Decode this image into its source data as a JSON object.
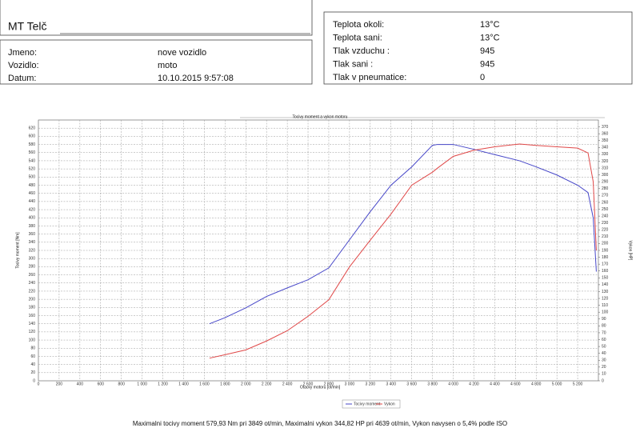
{
  "header": {
    "title": "MT Telč",
    "fields": [
      {
        "label": "Jmeno:",
        "value": "nove vozidlo"
      },
      {
        "label": "Vozidlo:",
        "value": "moto"
      },
      {
        "label": "Datum:",
        "value": "10.10.2015 9:57:08"
      }
    ]
  },
  "conditions": [
    {
      "label": "Teplota okoli:",
      "value": "13°C"
    },
    {
      "label": "Teplota sani:",
      "value": "13°C"
    },
    {
      "label": "Tlak vzduchu :",
      "value": "945"
    },
    {
      "label": "Tlak sani :",
      "value": "945"
    },
    {
      "label": "Tlak v pneumatice:",
      "value": "0"
    }
  ],
  "footer": "Maximalni tocivy moment 579,93 Nm pri 3849 ot/min,  Maximalni vykon 344,82 HP pri 4639 ot/min,  Vykon navysen o 5,4% podle ISO",
  "chart_data": {
    "type": "line",
    "title": "Tocivy moment a vykon motoru",
    "xlabel": "Otacky motoru [ot/min]",
    "ylabel": "Tocivy moment [Nm]",
    "y2label": "Vykon [HP]",
    "x": [
      1650,
      1800,
      2000,
      2200,
      2400,
      2600,
      2800,
      3000,
      3200,
      3400,
      3600,
      3800,
      3849,
      4000,
      4200,
      4400,
      4639,
      4800,
      5000,
      5200,
      5300,
      5350,
      5380
    ],
    "series": [
      {
        "name": "Tocivy moment",
        "color": "#4646c8",
        "values": [
          140,
          155,
          179,
          207,
          228,
          248,
          277,
          346,
          415,
          480,
          525,
          578,
          580,
          580,
          568,
          555,
          540,
          525,
          505,
          480,
          462,
          400,
          268
        ]
      },
      {
        "name": "Vykon",
        "color": "#e04848",
        "axis": "y2",
        "values": [
          33,
          38,
          45,
          58,
          73,
          94,
          118,
          166,
          205,
          243,
          285,
          304,
          310,
          327,
          336,
          341,
          345,
          343,
          341,
          339,
          332,
          290,
          190
        ]
      }
    ],
    "xlim": [
      0,
      5400
    ],
    "xticks": [
      0,
      200,
      400,
      600,
      800,
      {
        "value": 1000,
        "label": "1 000"
      },
      {
        "value": 1200,
        "label": "1 200"
      },
      {
        "value": 1400,
        "label": "1 400"
      },
      {
        "value": 1600,
        "label": "1 600"
      },
      {
        "value": 1800,
        "label": "1 800"
      },
      {
        "value": 2000,
        "label": "2 000"
      },
      {
        "value": 2200,
        "label": "2 200"
      },
      {
        "value": 2400,
        "label": "2 400"
      },
      {
        "value": 2600,
        "label": "2 600"
      },
      {
        "value": 2800,
        "label": "2 800"
      },
      {
        "value": 3000,
        "label": "3 000"
      },
      {
        "value": 3200,
        "label": "3 200"
      },
      {
        "value": 3400,
        "label": "3 400"
      },
      {
        "value": 3600,
        "label": "3 600"
      },
      {
        "value": 3800,
        "label": "3 800"
      },
      {
        "value": 4000,
        "label": "4 000"
      },
      {
        "value": 4200,
        "label": "4 200"
      },
      {
        "value": 4400,
        "label": "4 400"
      },
      {
        "value": 4600,
        "label": "4 600"
      },
      {
        "value": 4800,
        "label": "4 800"
      },
      {
        "value": 5000,
        "label": "5 000"
      },
      {
        "value": 5200,
        "label": "5 200"
      }
    ],
    "ylim": [
      0,
      640
    ],
    "yticks": [
      0,
      20,
      40,
      60,
      80,
      100,
      120,
      140,
      160,
      180,
      200,
      220,
      240,
      260,
      280,
      300,
      320,
      340,
      360,
      380,
      400,
      420,
      440,
      460,
      480,
      500,
      520,
      540,
      560,
      580,
      600,
      620
    ],
    "y2lim": [
      0,
      380
    ],
    "y2ticks": [
      0,
      10,
      20,
      30,
      40,
      50,
      60,
      70,
      80,
      90,
      100,
      110,
      120,
      130,
      140,
      150,
      160,
      170,
      180,
      190,
      200,
      210,
      220,
      230,
      240,
      250,
      260,
      270,
      280,
      290,
      300,
      310,
      320,
      330,
      340,
      350,
      360,
      370
    ],
    "grid": true
  }
}
